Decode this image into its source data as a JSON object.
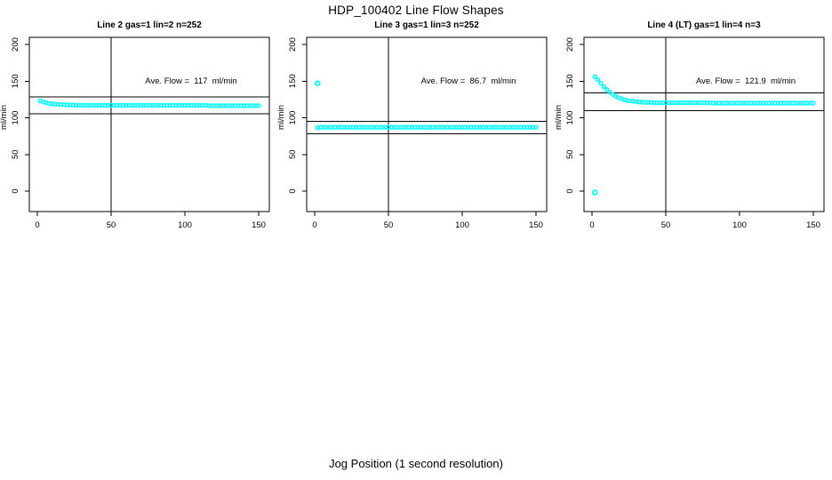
{
  "page": {
    "main_title": "HDP_100402  Line Flow Shapes",
    "x_axis_shared_label": "Jog Position (1 second resolution)",
    "background": "#FFFFFF"
  },
  "colors": {
    "points": "#00FFFF",
    "axis": "#000000",
    "text": "#000000"
  },
  "chart_data": [
    {
      "type": "scatter",
      "title": "Line 2 gas=1 lin=2 n=252",
      "xlabel": "",
      "ylabel": "ml/min",
      "x_ticks": [
        0,
        50,
        100,
        150
      ],
      "y_ticks": [
        0,
        50,
        100,
        150,
        200
      ],
      "xlim": [
        0,
        155
      ],
      "ylim": [
        -28,
        210
      ],
      "grid": false,
      "legend": "none",
      "ave_flow": 117,
      "ave_flow_label": "Ave. Flow =  117  ml/min",
      "ref_line_upper": 128.7,
      "ref_line_lower": 105.3,
      "vertical_line_x": 50,
      "n": 252,
      "x": [
        2,
        4,
        6,
        8,
        10,
        12,
        14,
        16,
        18,
        20,
        22,
        24,
        26,
        28,
        30,
        32,
        34,
        36,
        38,
        40,
        42,
        44,
        46,
        48,
        50,
        52,
        54,
        56,
        58,
        60,
        62,
        64,
        66,
        68,
        70,
        72,
        74,
        76,
        78,
        80,
        82,
        84,
        86,
        88,
        90,
        92,
        94,
        96,
        98,
        100,
        102,
        104,
        106,
        108,
        110,
        112,
        114,
        116,
        118,
        120,
        122,
        124,
        126,
        128,
        130,
        132,
        134,
        136,
        138,
        140,
        142,
        144,
        146,
        148,
        150
      ],
      "y": [
        123,
        121.5,
        120.5,
        119.5,
        119,
        118.5,
        118.5,
        118,
        118,
        117.5,
        117.5,
        117.5,
        117,
        117,
        117,
        117,
        117,
        117,
        117,
        117,
        117,
        117,
        117,
        117,
        117,
        117,
        117,
        117,
        117,
        117,
        117,
        117,
        117,
        117,
        117,
        117,
        117,
        117,
        117,
        117,
        117,
        117,
        117,
        117,
        117,
        117,
        117,
        117,
        117,
        117,
        117,
        117,
        117,
        117,
        117,
        117,
        117,
        116.5,
        116.5,
        116.5,
        116.5,
        116.5,
        116.5,
        116.5,
        116.5,
        116.5,
        116.5,
        116.5,
        116.5,
        116.5,
        116.5,
        116.5,
        116.5,
        116.5,
        116.5
      ],
      "outliers": []
    },
    {
      "type": "scatter",
      "title": "Line 3 gas=1 lin=3 n=252",
      "xlabel": "",
      "ylabel": "ml/min",
      "x_ticks": [
        0,
        50,
        100,
        150
      ],
      "y_ticks": [
        0,
        50,
        100,
        150,
        200
      ],
      "xlim": [
        0,
        155
      ],
      "ylim": [
        -28,
        210
      ],
      "grid": false,
      "legend": "none",
      "ave_flow": 86.7,
      "ave_flow_label": "Ave. Flow =  86.7  ml/min",
      "ref_line_upper": 95.4,
      "ref_line_lower": 78.0,
      "vertical_line_x": 50,
      "n": 252,
      "x": [
        2,
        4,
        6,
        8,
        10,
        12,
        14,
        16,
        18,
        20,
        22,
        24,
        26,
        28,
        30,
        32,
        34,
        36,
        38,
        40,
        42,
        44,
        46,
        48,
        50,
        52,
        54,
        56,
        58,
        60,
        62,
        64,
        66,
        68,
        70,
        72,
        74,
        76,
        78,
        80,
        82,
        84,
        86,
        88,
        90,
        92,
        94,
        96,
        98,
        100,
        102,
        104,
        106,
        108,
        110,
        112,
        114,
        116,
        118,
        120,
        122,
        124,
        126,
        128,
        130,
        132,
        134,
        136,
        138,
        140,
        142,
        144,
        146,
        148,
        150
      ],
      "y": [
        86.5,
        87,
        87,
        87,
        87,
        87,
        87,
        87,
        87,
        87,
        87,
        87,
        87,
        87,
        87,
        87,
        87,
        87,
        87,
        87,
        87,
        87,
        87,
        87,
        87,
        87,
        87,
        87,
        87,
        87,
        87,
        87,
        87,
        87,
        87,
        87,
        87,
        87,
        87,
        87,
        87,
        87,
        87,
        87,
        87,
        87,
        87,
        87,
        87,
        87,
        87,
        87,
        87,
        87,
        87,
        87,
        87,
        87,
        87,
        87,
        87,
        87,
        87,
        87,
        87,
        87,
        87,
        87,
        87,
        87,
        87,
        87,
        87,
        87,
        87
      ],
      "outliers": [
        [
          2,
          147
        ]
      ]
    },
    {
      "type": "scatter",
      "title": "Line 4 (LT) gas=1 lin=4 n=3",
      "xlabel": "",
      "ylabel": "ml/min",
      "x_ticks": [
        0,
        50,
        100,
        150
      ],
      "y_ticks": [
        0,
        50,
        100,
        150,
        200
      ],
      "xlim": [
        0,
        155
      ],
      "ylim": [
        -28,
        210
      ],
      "grid": false,
      "legend": "none",
      "ave_flow": 121.9,
      "ave_flow_label": "Ave. Flow =  121.9  ml/min",
      "ref_line_upper": 134.1,
      "ref_line_lower": 109.7,
      "vertical_line_x": 50,
      "n": 3,
      "x": [
        2,
        4,
        6,
        8,
        10,
        12,
        14,
        16,
        18,
        20,
        22,
        24,
        26,
        28,
        30,
        32,
        34,
        36,
        38,
        40,
        42,
        44,
        46,
        48,
        50,
        52,
        54,
        56,
        58,
        60,
        62,
        64,
        66,
        68,
        70,
        72,
        74,
        76,
        78,
        80,
        82,
        84,
        86,
        88,
        90,
        92,
        94,
        96,
        98,
        100,
        102,
        104,
        106,
        108,
        110,
        112,
        114,
        116,
        118,
        120,
        122,
        124,
        126,
        128,
        130,
        132,
        134,
        136,
        138,
        140,
        142,
        144,
        146,
        148,
        150
      ],
      "y": [
        156,
        152,
        147,
        142.5,
        138.5,
        135,
        132,
        129.5,
        127.5,
        126,
        124.5,
        123.5,
        123,
        122.5,
        122,
        121.5,
        121.5,
        121,
        121,
        121,
        120.5,
        120.5,
        120.5,
        120.5,
        120.5,
        120.5,
        120.5,
        120.5,
        120.5,
        120.5,
        120.5,
        120.5,
        120.5,
        120.5,
        120.5,
        120.5,
        120.5,
        120.5,
        120.5,
        120.5,
        120,
        120,
        120,
        120,
        120,
        120,
        120,
        120,
        120,
        120,
        120,
        120,
        120,
        120,
        120,
        120,
        120,
        120,
        120,
        120,
        120,
        120,
        120,
        120,
        120,
        120,
        120,
        120,
        120,
        120,
        120,
        120,
        120,
        120,
        120
      ],
      "outliers": [
        [
          2,
          -2
        ]
      ]
    }
  ]
}
